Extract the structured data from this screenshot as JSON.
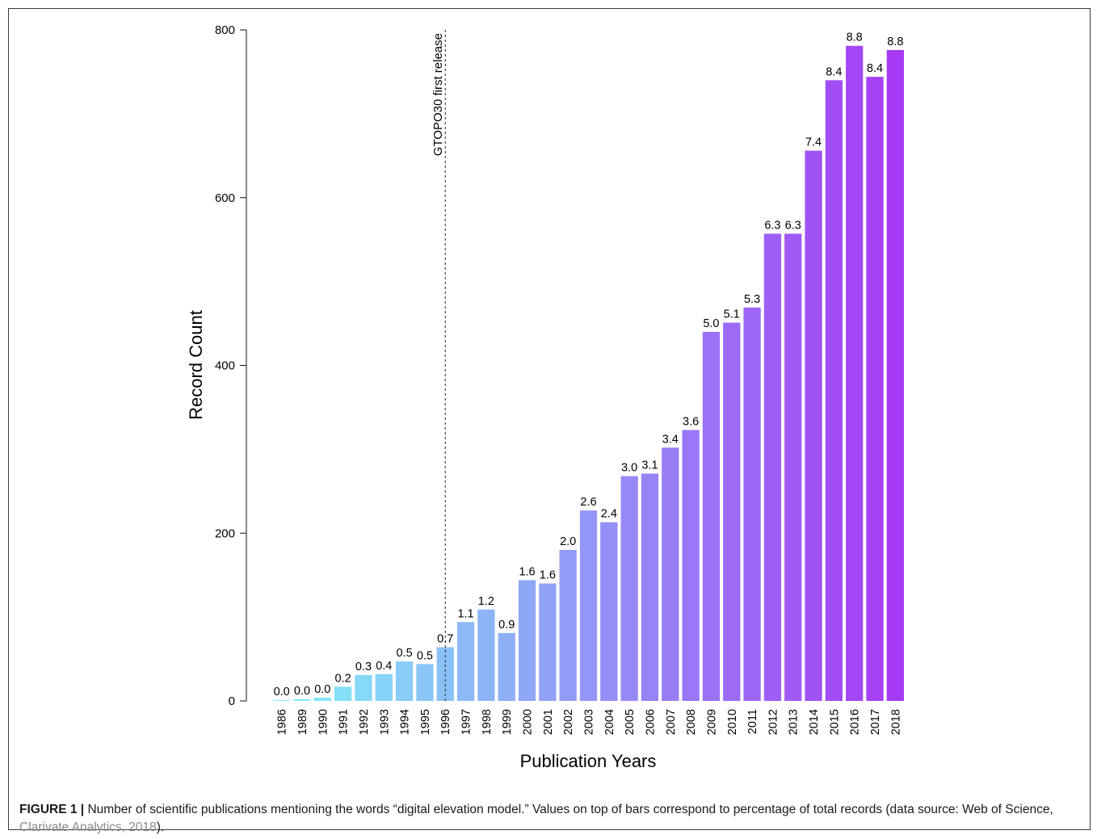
{
  "chart_data": {
    "type": "bar",
    "title": "",
    "xlabel": "Publication Years",
    "ylabel": "Record Count",
    "ylim": [
      0,
      800
    ],
    "yticks": [
      0,
      200,
      400,
      600,
      800
    ],
    "grid": false,
    "categories": [
      "1986",
      "1989",
      "1990",
      "1991",
      "1992",
      "1993",
      "1994",
      "1995",
      "1996",
      "1997",
      "1998",
      "1999",
      "2000",
      "2001",
      "2002",
      "2003",
      "2004",
      "2005",
      "2006",
      "2007",
      "2008",
      "2009",
      "2010",
      "2011",
      "2012",
      "2013",
      "2014",
      "2015",
      "2016",
      "2017",
      "2018"
    ],
    "values": [
      1,
      2,
      4,
      17,
      31,
      32,
      47,
      44,
      64,
      94,
      109,
      81,
      144,
      140,
      180,
      227,
      213,
      268,
      271,
      302,
      323,
      440,
      451,
      469,
      557,
      557,
      656,
      740,
      781,
      744,
      776
    ],
    "value_labels": [
      "0.0",
      "0.0",
      "0.0",
      "0.2",
      "0.3",
      "0.4",
      "0.5",
      "0.5",
      "0.7",
      "1.1",
      "1.2",
      "0.9",
      "1.6",
      "1.6",
      "2.0",
      "2.6",
      "2.4",
      "3.0",
      "3.1",
      "3.4",
      "3.6",
      "5.0",
      "5.1",
      "5.3",
      "6.3",
      "6.3",
      "7.4",
      "8.4",
      "8.8",
      "8.4",
      "8.8"
    ],
    "annotation": {
      "text": "GTOPO30 first release",
      "at_category": "1996"
    },
    "color_start": "#80f1f7",
    "color_end": "#a63af5"
  },
  "caption": {
    "label": "FIGURE 1 |",
    "text": " Number of scientific publications mentioning the words “digital elevation model.” Values on top of bars correspond to percentage of total records (data source: Web of Science, ",
    "citation": "Clarivate Analytics, 2018",
    "end": ")."
  }
}
